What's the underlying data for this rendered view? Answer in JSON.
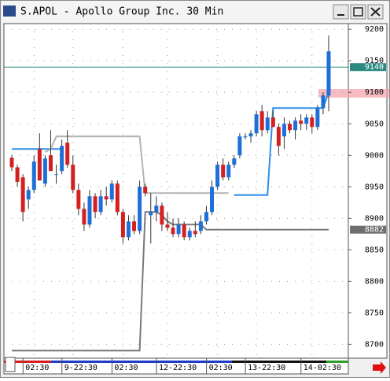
{
  "window": {
    "title": "S.APOL - Apollo Group Inc. 30 Min"
  },
  "chart_data": {
    "type": "candlestick",
    "categories": [
      null,
      null,
      null,
      null,
      "02:30",
      null,
      null,
      null,
      null,
      null,
      null,
      "9-22:30",
      null,
      null,
      null,
      null,
      null,
      null,
      null,
      null,
      "02:30",
      null,
      null,
      null,
      null,
      null,
      null,
      null,
      "12-22:30",
      null,
      null,
      null,
      null,
      null,
      null,
      null,
      null,
      "02:30",
      null,
      null,
      null,
      null,
      null,
      null,
      "13-22:30",
      null,
      null,
      null,
      null,
      null,
      null,
      null,
      null,
      null,
      "14-02:30",
      null,
      null,
      null
    ],
    "open": [
      8996,
      8981,
      8965,
      8930,
      8945,
      9010,
      8955,
      9000,
      8970,
      8975,
      9020,
      8985,
      8945,
      8915,
      8890,
      8935,
      8910,
      8935,
      8930,
      8955,
      8910,
      8870,
      8895,
      8880,
      8950,
      8905,
      8910,
      8920,
      8890,
      8885,
      8875,
      8890,
      8870,
      8880,
      8880,
      8895,
      8910,
      8950,
      8985,
      8965,
      8985,
      9000,
      9030,
      9030,
      9035,
      9070,
      9040,
      9060,
      9045,
      9030,
      9050,
      9040,
      9055,
      9050,
      9060,
      9045,
      9075,
      9095
    ],
    "high": [
      9000,
      8985,
      8970,
      8950,
      9000,
      9035,
      9000,
      9040,
      8985,
      9025,
      9040,
      9000,
      8955,
      8925,
      8945,
      8940,
      8945,
      8950,
      8960,
      8960,
      8915,
      8905,
      8905,
      8960,
      8955,
      8940,
      8935,
      8925,
      8910,
      8900,
      8900,
      8895,
      8885,
      8895,
      8905,
      8920,
      8960,
      8990,
      8995,
      8990,
      9000,
      9035,
      9035,
      9040,
      9070,
      9080,
      9070,
      9070,
      9050,
      9060,
      9055,
      9060,
      9065,
      9065,
      9065,
      9080,
      9100,
      9190
    ],
    "low": [
      8975,
      8950,
      8895,
      8915,
      8940,
      8960,
      8950,
      8975,
      8955,
      8970,
      8980,
      8940,
      8905,
      8880,
      8885,
      8900,
      8905,
      8920,
      8925,
      8905,
      8860,
      8865,
      8875,
      8875,
      8935,
      8860,
      8895,
      8880,
      8880,
      8870,
      8870,
      8865,
      8865,
      8870,
      8875,
      8890,
      8905,
      8945,
      8960,
      8960,
      8980,
      8995,
      9025,
      9020,
      9030,
      9030,
      9035,
      9045,
      9000,
      9010,
      9035,
      9025,
      9040,
      9040,
      9035,
      9040,
      9065,
      9070
    ],
    "close": [
      8981,
      8958,
      8910,
      8945,
      8990,
      8960,
      8995,
      8975,
      8970,
      9015,
      8985,
      8945,
      8915,
      8890,
      8935,
      8910,
      8935,
      8930,
      8955,
      8910,
      8870,
      8895,
      8880,
      8950,
      8940,
      8910,
      8920,
      8890,
      8885,
      8875,
      8890,
      8870,
      8880,
      8875,
      8895,
      8910,
      8950,
      8985,
      8965,
      8985,
      8995,
      9030,
      9030,
      9035,
      9065,
      9040,
      9060,
      9045,
      9015,
      9050,
      9040,
      9055,
      9050,
      9060,
      9045,
      9075,
      9095,
      9165
    ],
    "up_color": "#1e6fd9",
    "down_color": "#d42020",
    "lines": [
      {
        "color": "#2f8ee8",
        "values": [
          9010,
          9010,
          9010,
          9010,
          9010,
          9010,
          9010,
          9010,
          9010,
          9010,
          null,
          null,
          null,
          null,
          null,
          null,
          null,
          null,
          null,
          null,
          null,
          null,
          null,
          null,
          null,
          null,
          null,
          null,
          null,
          null,
          null,
          null,
          null,
          null,
          null,
          null,
          null,
          null,
          null,
          null,
          8937,
          8937,
          8937,
          8937,
          8937,
          8937,
          8937,
          9075,
          9075,
          9075,
          9075,
          9075,
          9075,
          9075,
          9075,
          9075,
          9075,
          9100
        ]
      },
      {
        "color": "#b4b4b4",
        "values": [
          null,
          null,
          null,
          null,
          null,
          null,
          9005,
          9010,
          9030,
          9030,
          9030,
          9030,
          9030,
          9030,
          9030,
          9030,
          9030,
          9030,
          9030,
          9030,
          9030,
          9030,
          9030,
          9030,
          8940,
          8940,
          8940,
          8940,
          8940,
          8940,
          8940,
          8940,
          8940,
          8940,
          8940,
          8940,
          8940,
          8940,
          8940,
          8940,
          null,
          null,
          null,
          null,
          null,
          null,
          null,
          null,
          null,
          null,
          null,
          null,
          null,
          null,
          null,
          null,
          null,
          null
        ]
      },
      {
        "color": "#7a7a7a",
        "values": [
          8690,
          8690,
          8690,
          8690,
          8690,
          8690,
          8690,
          8690,
          8690,
          8690,
          8690,
          8690,
          8690,
          8690,
          8690,
          8690,
          8690,
          8690,
          8690,
          8690,
          8690,
          8690,
          8690,
          8690,
          8910,
          8910,
          8910,
          8905,
          8895,
          8890,
          8890,
          8890,
          8890,
          8890,
          8890,
          8882,
          8882,
          8882,
          8882,
          8882,
          8882,
          8882,
          8882,
          8882,
          8882,
          8882,
          8882,
          8882,
          8882,
          8882,
          8882,
          8882,
          8882,
          8882,
          8882,
          8882,
          8882,
          8882
        ]
      }
    ],
    "price_markers": [
      {
        "value": 9140,
        "color": "#2a8a80",
        "line": true
      },
      {
        "value": 8882,
        "color": "#6e6e6e",
        "line": false
      }
    ],
    "ylim": [
      8678,
      9209
    ],
    "yticks": [
      8700,
      8750,
      8800,
      8850,
      8900,
      8950,
      9000,
      9050,
      9100,
      9150,
      9200
    ],
    "grid": true
  }
}
